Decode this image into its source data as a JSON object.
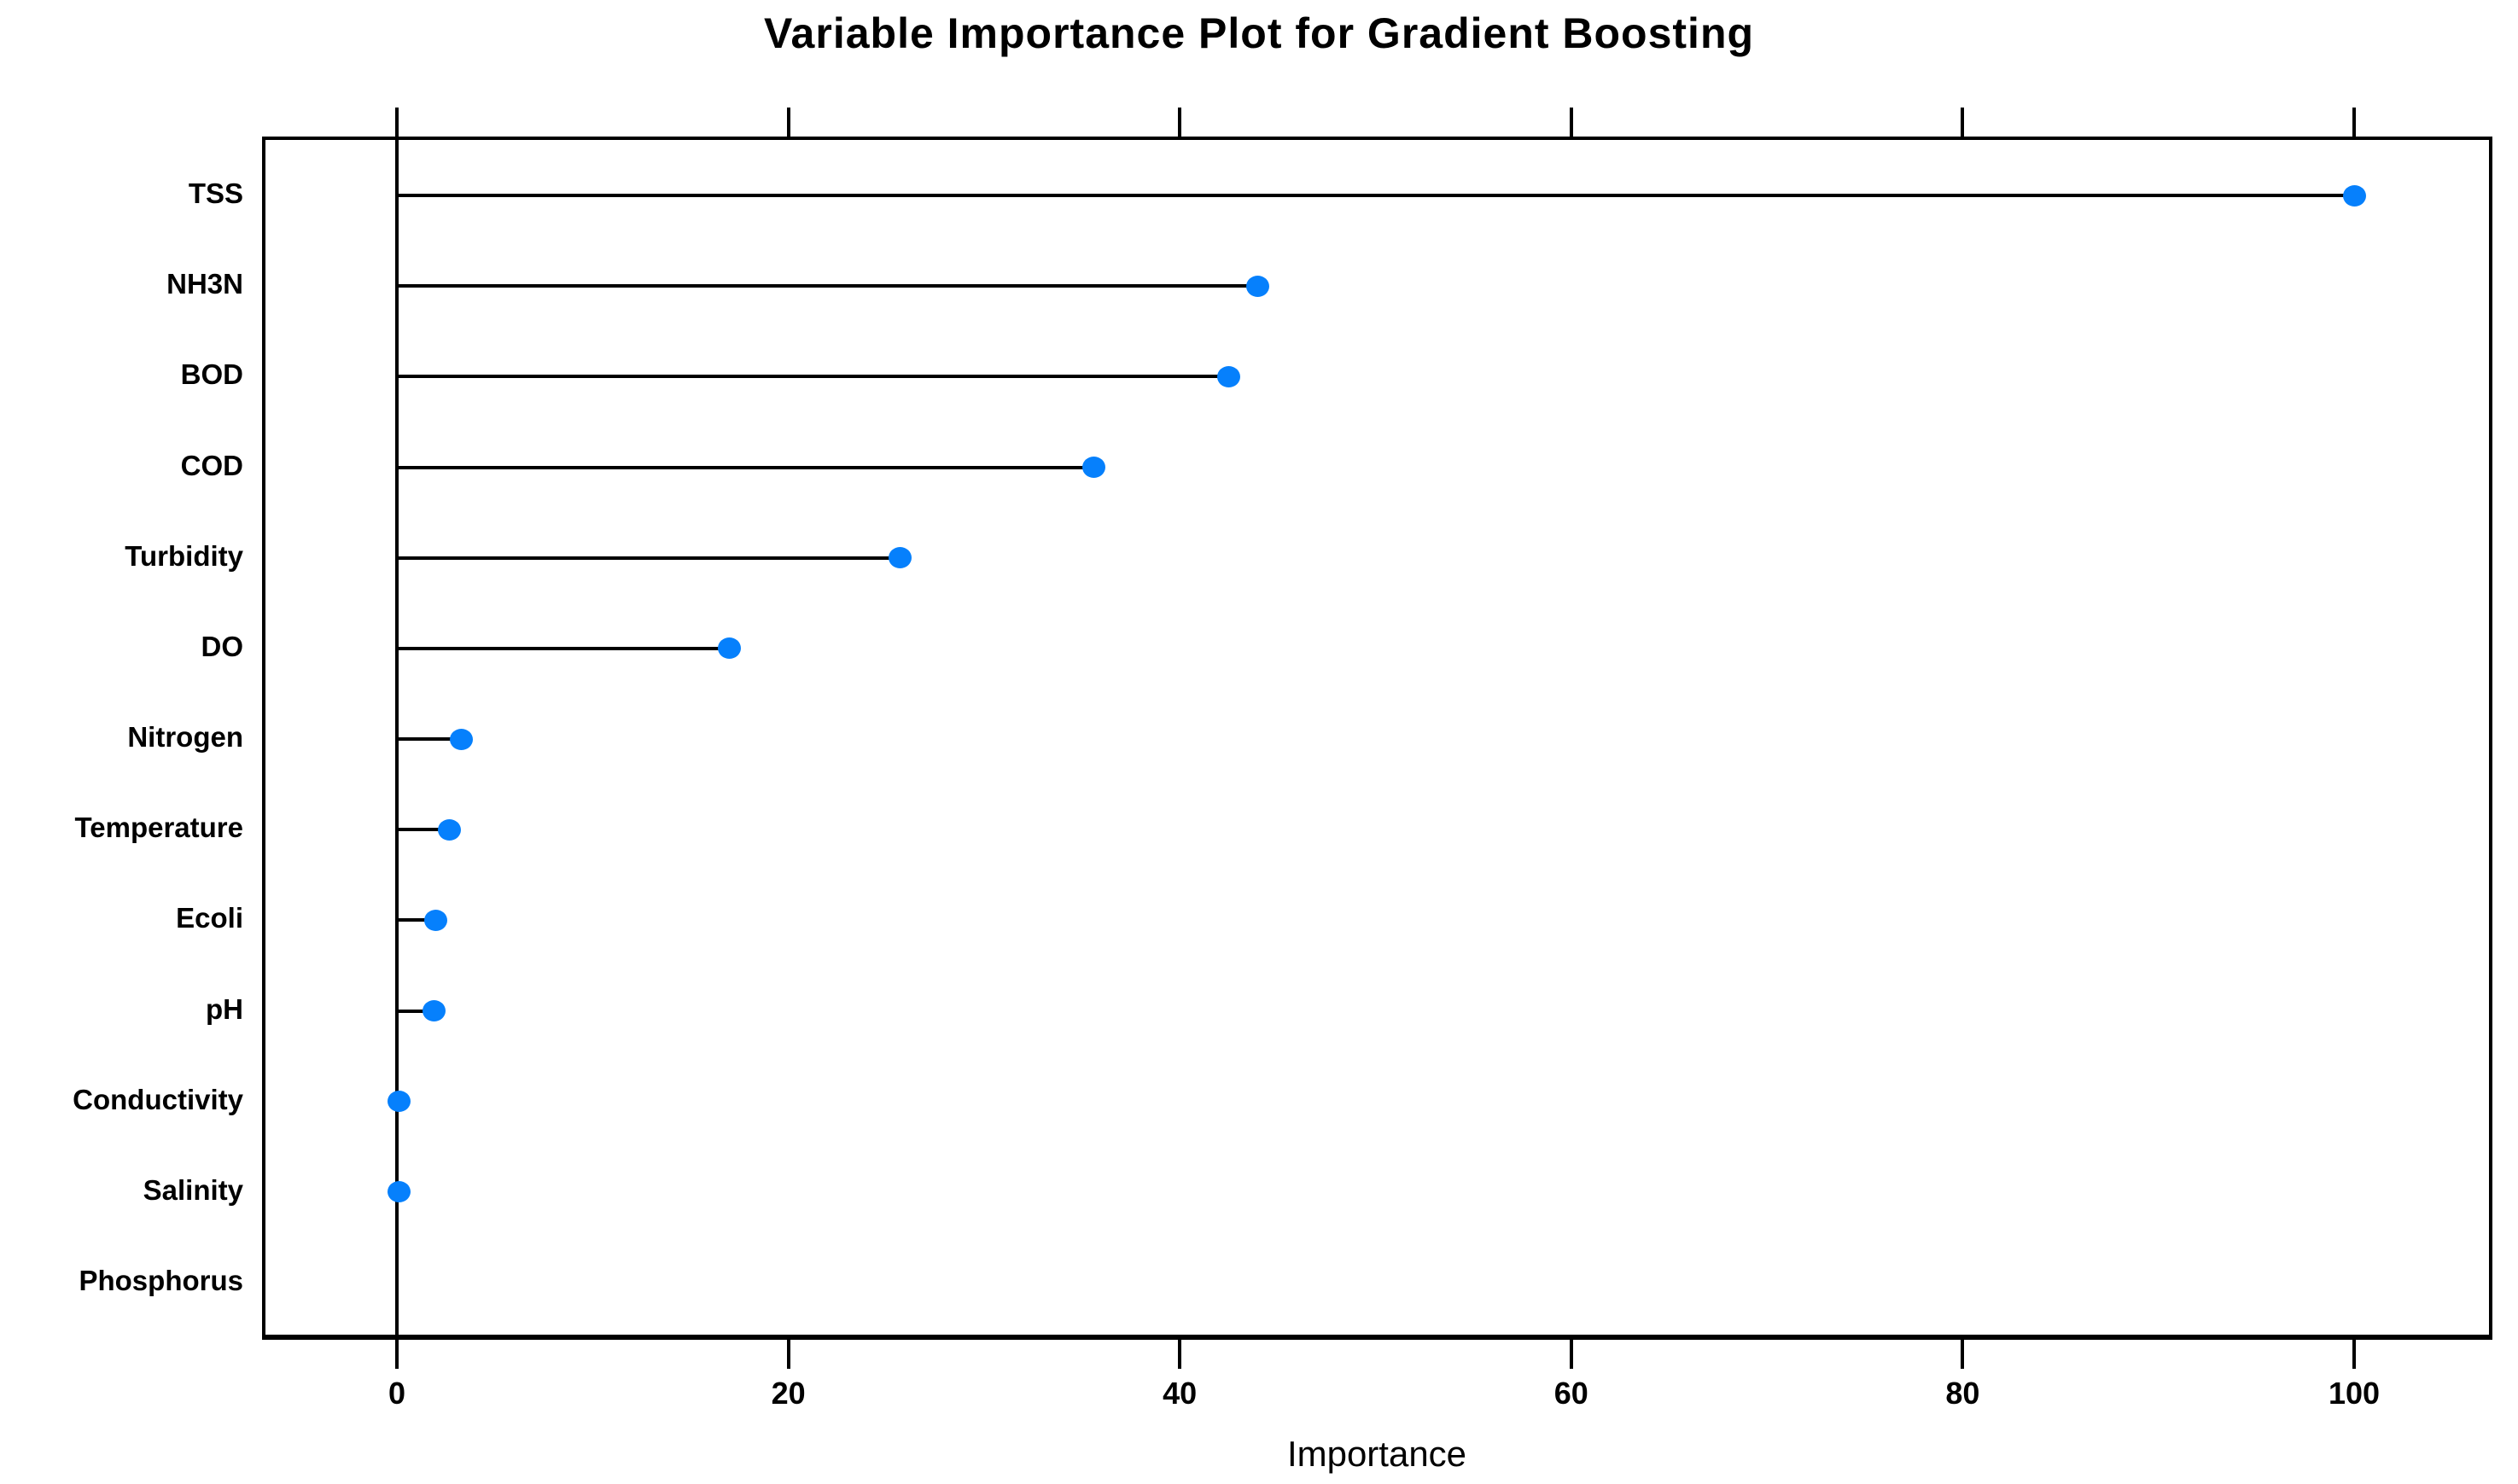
{
  "chart_data": {
    "type": "scatter",
    "subtype": "lollipop-dot-plot",
    "title": "Variable Importance Plot for Gradient Boosting",
    "xlabel": "Importance",
    "ylabel": "",
    "categories": [
      "TSS",
      "NH3N",
      "BOD",
      "COD",
      "Turbidity",
      "DO",
      "Nitrogen",
      "Temperature",
      "Ecoli",
      "pH",
      "Conductivity",
      "Salinity",
      "Phosphorus"
    ],
    "values": [
      100,
      44,
      42.5,
      35.6,
      25.7,
      17,
      3.3,
      2.7,
      2.0,
      1.9,
      0.1,
      0.1,
      null
    ],
    "x_ticks": [
      0,
      20,
      40,
      60,
      80,
      100
    ],
    "xlim": [
      -7,
      107
    ],
    "grid": "off",
    "legend": "none",
    "ticks_position": "top-and-bottom-outward",
    "zero_reference_line": true,
    "point_color": "#0680fc",
    "stem_color": "#000000",
    "axis_color": "#000000",
    "background_color": "#ffffff"
  }
}
